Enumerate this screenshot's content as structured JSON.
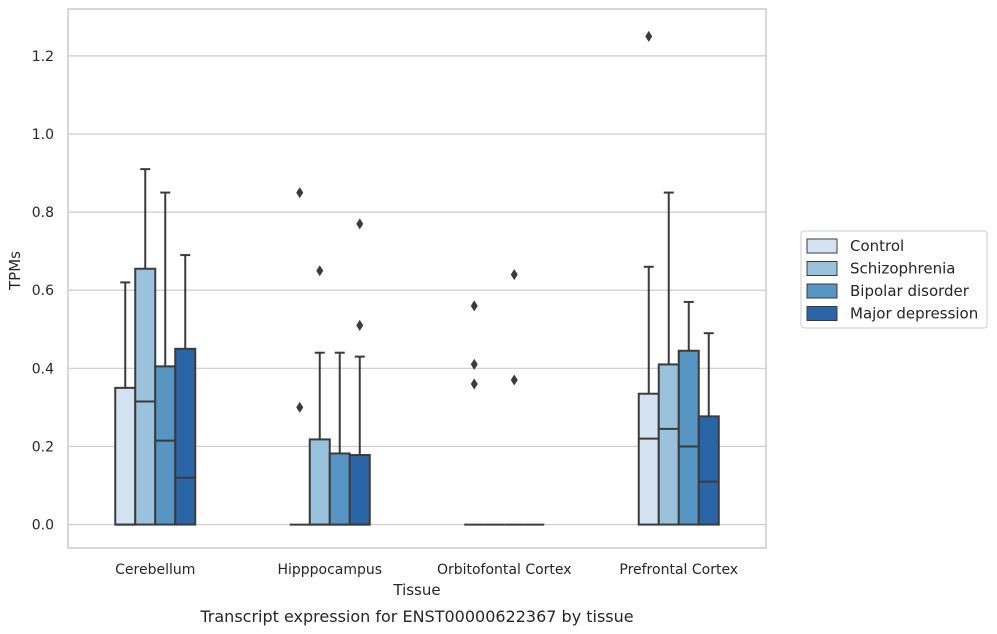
{
  "chart_data": {
    "type": "box",
    "caption": "Transcript expression for ENST00000622367 by tissue",
    "xlabel": "Tissue",
    "ylabel": "TPMs",
    "ylim": [
      -0.06,
      1.32
    ],
    "yticks": [
      0.0,
      0.2,
      0.4,
      0.6,
      0.8,
      1.0,
      1.2
    ],
    "ytick_labels": [
      "0.0",
      "0.2",
      "0.4",
      "0.6",
      "0.8",
      "1.0",
      "1.2"
    ],
    "grid": "horizontal",
    "legend_position": "right-outside",
    "categories": [
      "Cerebellum",
      "Hipppocampus",
      "Orbitofontal Cortex",
      "Prefrontal Cortex"
    ],
    "series": [
      {
        "name": "Control",
        "color": "#d4e3f1",
        "boxes": [
          {
            "q1": 0.0,
            "median": 0.0,
            "q3": 0.35,
            "whisker_low": 0.0,
            "whisker_high": 0.62,
            "outliers": []
          },
          {
            "q1": 0.0,
            "median": 0.0,
            "q3": 0.0,
            "whisker_low": 0.0,
            "whisker_high": 0.0,
            "outliers": [
              0.3,
              0.85
            ]
          },
          {
            "q1": 0.0,
            "median": 0.0,
            "q3": 0.0,
            "whisker_low": 0.0,
            "whisker_high": 0.0,
            "outliers": [
              0.36,
              0.41,
              0.56
            ]
          },
          {
            "q1": 0.0,
            "median": 0.22,
            "q3": 0.335,
            "whisker_low": 0.0,
            "whisker_high": 0.66,
            "outliers": [
              1.25
            ]
          }
        ]
      },
      {
        "name": "Schizophrenia",
        "color": "#9ac2dc",
        "boxes": [
          {
            "q1": 0.0,
            "median": 0.315,
            "q3": 0.655,
            "whisker_low": 0.0,
            "whisker_high": 0.91,
            "outliers": []
          },
          {
            "q1": 0.0,
            "median": 0.0,
            "q3": 0.218,
            "whisker_low": 0.0,
            "whisker_high": 0.44,
            "outliers": [
              0.65
            ]
          },
          {
            "q1": 0.0,
            "median": 0.0,
            "q3": 0.0,
            "whisker_low": 0.0,
            "whisker_high": 0.0,
            "outliers": []
          },
          {
            "q1": 0.0,
            "median": 0.245,
            "q3": 0.41,
            "whisker_low": 0.0,
            "whisker_high": 0.85,
            "outliers": []
          }
        ]
      },
      {
        "name": "Bipolar disorder",
        "color": "#5796c4",
        "boxes": [
          {
            "q1": 0.0,
            "median": 0.215,
            "q3": 0.405,
            "whisker_low": 0.0,
            "whisker_high": 0.85,
            "outliers": []
          },
          {
            "q1": 0.0,
            "median": 0.0,
            "q3": 0.182,
            "whisker_low": 0.0,
            "whisker_high": 0.44,
            "outliers": []
          },
          {
            "q1": 0.0,
            "median": 0.0,
            "q3": 0.0,
            "whisker_low": 0.0,
            "whisker_high": 0.0,
            "outliers": [
              0.37,
              0.64
            ]
          },
          {
            "q1": 0.0,
            "median": 0.2,
            "q3": 0.445,
            "whisker_low": 0.0,
            "whisker_high": 0.57,
            "outliers": []
          }
        ]
      },
      {
        "name": "Major depression",
        "color": "#2a66a7",
        "boxes": [
          {
            "q1": 0.0,
            "median": 0.12,
            "q3": 0.45,
            "whisker_low": 0.0,
            "whisker_high": 0.69,
            "outliers": []
          },
          {
            "q1": 0.0,
            "median": 0.0,
            "q3": 0.178,
            "whisker_low": 0.0,
            "whisker_high": 0.43,
            "outliers": [
              0.51,
              0.77
            ]
          },
          {
            "q1": 0.0,
            "median": 0.0,
            "q3": 0.0,
            "whisker_low": 0.0,
            "whisker_high": 0.0,
            "outliers": []
          },
          {
            "q1": 0.0,
            "median": 0.11,
            "q3": 0.277,
            "whisker_low": 0.0,
            "whisker_high": 0.49,
            "outliers": []
          }
        ]
      }
    ]
  }
}
